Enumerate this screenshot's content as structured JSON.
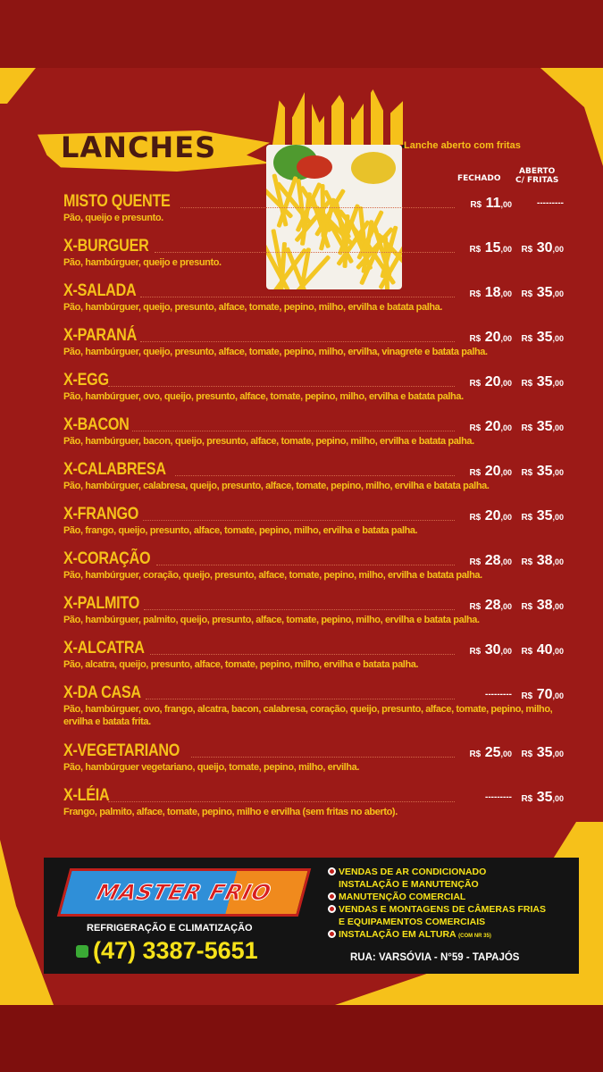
{
  "title": "LANCHES",
  "open_label": "Lanche aberto com fritas",
  "columns": {
    "closed": "FECHADO",
    "open_line1": "ABERTO",
    "open_line2": "C/ FRITAS"
  },
  "currency": "R$",
  "dash": "---------",
  "items": [
    {
      "name": "MISTO QUENTE",
      "desc": "Pão, queijo e presunto.",
      "closed": "11",
      "open": null
    },
    {
      "name": "X-BURGUER",
      "desc": "Pão, hambúrguer, queijo e presunto.",
      "closed": "15",
      "open": "30"
    },
    {
      "name": "X-SALADA",
      "desc": "Pão, hambúrguer, queijo, presunto, alface, tomate, pepino, milho, ervilha e batata palha.",
      "closed": "18",
      "open": "35"
    },
    {
      "name": "X-PARANÁ",
      "desc": "Pão, hambúrguer, queijo, presunto, alface, tomate, pepino, milho, ervilha, vinagrete e batata palha.",
      "closed": "20",
      "open": "35"
    },
    {
      "name": "X-EGG",
      "desc": "Pão, hambúrguer, ovo, queijo, presunto, alface, tomate, pepino, milho, ervilha e batata palha.",
      "closed": "20",
      "open": "35"
    },
    {
      "name": "X-BACON",
      "desc": "Pão, hambúrguer, bacon, queijo, presunto, alface, tomate, pepino, milho, ervilha e batata palha.",
      "closed": "20",
      "open": "35"
    },
    {
      "name": "X-CALABRESA",
      "desc": "Pão, hambúrguer, calabresa, queijo, presunto, alface, tomate, pepino, milho, ervilha e batata palha.",
      "closed": "20",
      "open": "35"
    },
    {
      "name": "X-FRANGO",
      "desc": "Pão, frango, queijo, presunto, alface, tomate, pepino, milho, ervilha e batata palha.",
      "closed": "20",
      "open": "35"
    },
    {
      "name": "X-CORAÇÃO",
      "desc": "Pão, hambúrguer, coração, queijo, presunto, alface, tomate, pepino, milho, ervilha e batata palha.",
      "closed": "28",
      "open": "38"
    },
    {
      "name": "X-PALMITO",
      "desc": "Pão, hambúrguer, palmito, queijo, presunto, alface, tomate, pepino, milho, ervilha e batata palha.",
      "closed": "28",
      "open": "38"
    },
    {
      "name": "X-ALCATRA",
      "desc": "Pão, alcatra, queijo, presunto, alface, tomate, pepino, milho, ervilha e batata palha.",
      "closed": "30",
      "open": "40"
    },
    {
      "name": "X-DA CASA",
      "desc": "Pão, hambúrguer, ovo, frango, alcatra, bacon, calabresa, coração, queijo, presunto, alface, tomate, pepino, milho, ervilha e batata frita.",
      "closed": null,
      "open": "70"
    },
    {
      "name": "X-VEGETARIANO",
      "desc": "Pão, hambúrguer vegetariano, queijo, tomate, pepino, milho, ervilha.",
      "closed": "25",
      "open": "35"
    },
    {
      "name": "X-LÉIA",
      "desc": "Frango, palmito, alface, tomate, pepino, milho e ervilha (sem fritas no aberto).",
      "closed": null,
      "open": "35"
    }
  ],
  "cents": ",00",
  "ad": {
    "logo": "MASTER FRIO",
    "subtitle": "REFRIGERAÇÃO E CLIMATIZAÇÃO",
    "phone": "(47) 3387-5651",
    "services": [
      {
        "text": "VENDAS DE AR CONDICIONADO",
        "bullet": true
      },
      {
        "text": "INSTALAÇÃO E MANUTENÇÃO",
        "bullet": false
      },
      {
        "text": "MANUTENÇÃO COMERCIAL",
        "bullet": true
      },
      {
        "text": "VENDAS E MONTAGENS DE CÂMERAS FRIAS",
        "bullet": true
      },
      {
        "text": "E EQUIPAMENTOS COMERCIAIS",
        "bullet": false
      },
      {
        "text": "INSTALAÇÃO EM ALTURA",
        "note": "(COM NR 35)",
        "bullet": true
      }
    ],
    "address": "RUA: VARSÓVIA - N°59 - TAPAJÓS"
  },
  "colors": {
    "background": "#9c1a17",
    "accent": "#f6c11a",
    "price": "#ffffff"
  }
}
